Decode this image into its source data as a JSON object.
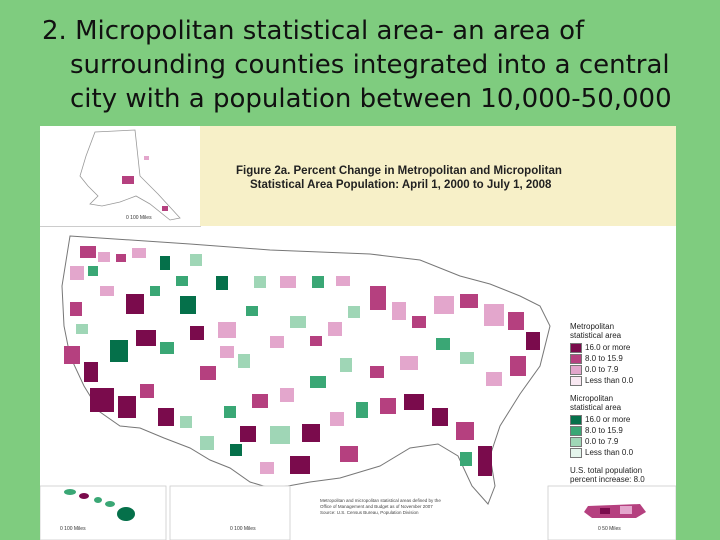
{
  "slide": {
    "line1": "2.  Micropolitan statistical area- an area of",
    "line2": "surrounding counties integrated into a central",
    "line3": "city with a population between 10,000-50,000"
  },
  "figure": {
    "title_line1": "Figure 2a. Percent Change in Metropolitan and Micropolitan",
    "title_line2": "Statistical Area Population: April 1, 2000 to July 1, 2008"
  },
  "legend": {
    "metro_title_line1": "Metropolitan",
    "metro_title_line2": "statistical area",
    "metro_items": [
      {
        "label": "16.0 or more",
        "color": "#7a0b4c"
      },
      {
        "label": "8.0 to 15.9",
        "color": "#b5407f"
      },
      {
        "label": "0.0 to 7.9",
        "color": "#e3a6cc"
      },
      {
        "label": "Less than 0.0",
        "color": "#f9e8f2"
      }
    ],
    "micro_title_line1": "Micropolitan",
    "micro_title_line2": "statistical area",
    "micro_items": [
      {
        "label": "16.0 or more",
        "color": "#05704a"
      },
      {
        "label": "8.0 to 15.9",
        "color": "#3aa775"
      },
      {
        "label": "0.0 to 7.9",
        "color": "#9fd6b6"
      },
      {
        "label": "Less than 0.0",
        "color": "#e4f5ec"
      }
    ],
    "total_line1": "U.S. total population",
    "total_line2": "percent increase: 8.0"
  },
  "source": {
    "line1": "Metropolitan and micropolitan statistical areas defined by the",
    "line2": "Office of Management and Budget as of November 2007",
    "line3": "Source: U.S. Census Bureau, Population Division"
  },
  "scales": {
    "alaska": "0   100 Miles",
    "hawaii": "0   100 Miles",
    "hawaii2": "0   100 Miles",
    "puerto_rico": "0      50 Miles"
  }
}
